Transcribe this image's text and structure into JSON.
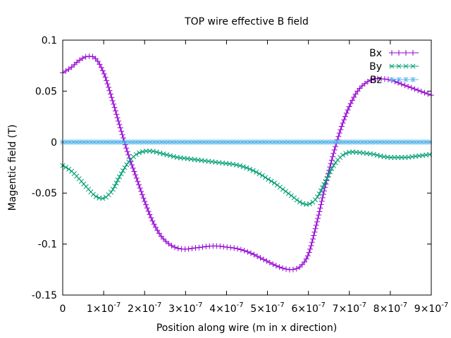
{
  "chart_data": {
    "type": "line",
    "title": "TOP wire effective B field",
    "xlabel": "Position along wire (m in x direction)",
    "ylabel": "Magentic field (T)",
    "xlim": [
      0,
      9e-07
    ],
    "ylim": [
      -0.15,
      0.1
    ],
    "grid": false,
    "legend_position": "top-right",
    "x_ticks": [
      {
        "value": 0,
        "mantissa": "0",
        "exp": ""
      },
      {
        "value": 1e-07,
        "mantissa": "1×10",
        "exp": "-7"
      },
      {
        "value": 2e-07,
        "mantissa": "2×10",
        "exp": "-7"
      },
      {
        "value": 3e-07,
        "mantissa": "3×10",
        "exp": "-7"
      },
      {
        "value": 4e-07,
        "mantissa": "4×10",
        "exp": "-7"
      },
      {
        "value": 5e-07,
        "mantissa": "5×10",
        "exp": "-7"
      },
      {
        "value": 6e-07,
        "mantissa": "6×10",
        "exp": "-7"
      },
      {
        "value": 7e-07,
        "mantissa": "7×10",
        "exp": "-7"
      },
      {
        "value": 8e-07,
        "mantissa": "8×10",
        "exp": "-7"
      },
      {
        "value": 9e-07,
        "mantissa": "9×10",
        "exp": "-7"
      }
    ],
    "y_ticks": [
      {
        "value": 0.1,
        "label": "0.1"
      },
      {
        "value": 0.05,
        "label": "0.05"
      },
      {
        "value": 0,
        "label": "0"
      },
      {
        "value": -0.05,
        "label": "-0.05"
      },
      {
        "value": -0.1,
        "label": "-0.1"
      },
      {
        "value": -0.15,
        "label": "-0.15"
      }
    ],
    "series": [
      {
        "name": "Bx",
        "color": "#9400d3",
        "marker": "plus",
        "x": [
          0,
          2e-08,
          4e-08,
          6e-08,
          8e-08,
          1e-07,
          1.2e-07,
          1.4e-07,
          1.6e-07,
          1.8e-07,
          2e-07,
          2.2e-07,
          2.4e-07,
          2.6e-07,
          2.8e-07,
          3e-07,
          3.2e-07,
          3.4e-07,
          3.6e-07,
          3.8e-07,
          4e-07,
          4.2e-07,
          4.4e-07,
          4.6e-07,
          4.8e-07,
          5e-07,
          5.2e-07,
          5.4e-07,
          5.6e-07,
          5.8e-07,
          6e-07,
          6.2e-07,
          6.4e-07,
          6.6e-07,
          6.8e-07,
          7e-07,
          7.2e-07,
          7.4e-07,
          7.6e-07,
          7.8e-07,
          8e-07,
          8.2e-07,
          8.4e-07,
          8.6e-07,
          8.8e-07,
          9e-07
        ],
        "y": [
          0.068,
          0.073,
          0.08,
          0.084,
          0.082,
          0.068,
          0.043,
          0.015,
          -0.012,
          -0.035,
          -0.058,
          -0.078,
          -0.092,
          -0.1,
          -0.104,
          -0.105,
          -0.104,
          -0.103,
          -0.102,
          -0.102,
          -0.103,
          -0.104,
          -0.106,
          -0.109,
          -0.113,
          -0.117,
          -0.121,
          -0.124,
          -0.125,
          -0.122,
          -0.11,
          -0.08,
          -0.045,
          -0.013,
          0.014,
          0.035,
          0.05,
          0.058,
          0.062,
          0.062,
          0.061,
          0.058,
          0.055,
          0.052,
          0.049,
          0.046
        ]
      },
      {
        "name": "By",
        "color": "#009e73",
        "marker": "cross",
        "x": [
          0,
          2e-08,
          4e-08,
          6e-08,
          8e-08,
          1e-07,
          1.2e-07,
          1.4e-07,
          1.6e-07,
          1.8e-07,
          2e-07,
          2.2e-07,
          2.4e-07,
          2.6e-07,
          2.8e-07,
          3e-07,
          3.2e-07,
          3.4e-07,
          3.6e-07,
          3.8e-07,
          4e-07,
          4.2e-07,
          4.4e-07,
          4.6e-07,
          4.8e-07,
          5e-07,
          5.2e-07,
          5.4e-07,
          5.6e-07,
          5.8e-07,
          6e-07,
          6.2e-07,
          6.4e-07,
          6.6e-07,
          6.8e-07,
          7e-07,
          7.2e-07,
          7.4e-07,
          7.6e-07,
          7.8e-07,
          8e-07,
          8.2e-07,
          8.4e-07,
          8.6e-07,
          8.8e-07,
          9e-07
        ],
        "y": [
          -0.023,
          -0.028,
          -0.036,
          -0.045,
          -0.053,
          -0.055,
          -0.048,
          -0.033,
          -0.02,
          -0.012,
          -0.009,
          -0.009,
          -0.011,
          -0.013,
          -0.015,
          -0.016,
          -0.017,
          -0.018,
          -0.019,
          -0.02,
          -0.021,
          -0.022,
          -0.024,
          -0.027,
          -0.031,
          -0.036,
          -0.041,
          -0.047,
          -0.053,
          -0.059,
          -0.061,
          -0.055,
          -0.04,
          -0.024,
          -0.014,
          -0.01,
          -0.01,
          -0.011,
          -0.012,
          -0.014,
          -0.015,
          -0.015,
          -0.015,
          -0.014,
          -0.013,
          -0.012
        ]
      },
      {
        "name": "Bz",
        "color": "#56b4e9",
        "marker": "star",
        "x": [
          0,
          2e-08,
          4e-08,
          6e-08,
          8e-08,
          1e-07,
          1.2e-07,
          1.4e-07,
          1.6e-07,
          1.8e-07,
          2e-07,
          2.2e-07,
          2.4e-07,
          2.6e-07,
          2.8e-07,
          3e-07,
          3.2e-07,
          3.4e-07,
          3.6e-07,
          3.8e-07,
          4e-07,
          4.2e-07,
          4.4e-07,
          4.6e-07,
          4.8e-07,
          5e-07,
          5.2e-07,
          5.4e-07,
          5.6e-07,
          5.8e-07,
          6e-07,
          6.2e-07,
          6.4e-07,
          6.6e-07,
          6.8e-07,
          7e-07,
          7.2e-07,
          7.4e-07,
          7.6e-07,
          7.8e-07,
          8e-07,
          8.2e-07,
          8.4e-07,
          8.6e-07,
          8.8e-07,
          9e-07
        ],
        "y": [
          0,
          0,
          0,
          0,
          0,
          0,
          0,
          0,
          0,
          0,
          0,
          0,
          0,
          0,
          0,
          0,
          0,
          0,
          0,
          0,
          0,
          0,
          0,
          0,
          0,
          0,
          0,
          0,
          0,
          0,
          0,
          0,
          0,
          0,
          0,
          0,
          0,
          0,
          0,
          0,
          0,
          0,
          0,
          0,
          0,
          0
        ]
      }
    ]
  }
}
